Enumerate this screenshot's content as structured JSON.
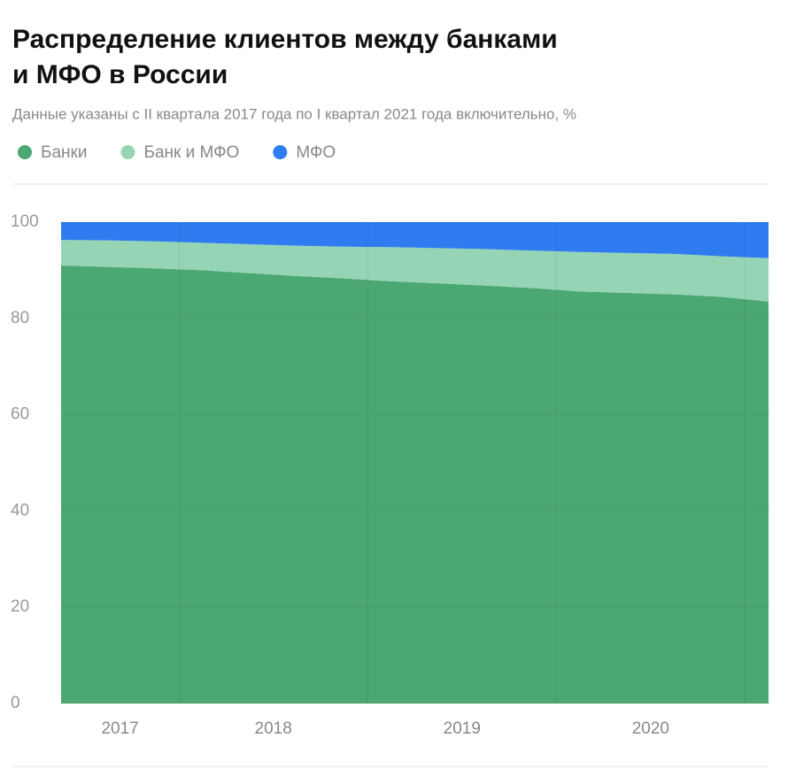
{
  "chart_data": {
    "type": "stacked_area",
    "title": "Распределение клиентов между банками и МФО в России",
    "subtitle": "Данные указаны с II квартала 2017 года по I квартал 2021 года включительно, %",
    "categories": [
      "2017",
      null,
      null,
      "2018",
      null,
      null,
      null,
      "2019",
      null,
      null,
      null,
      "2020",
      null,
      null,
      null,
      null
    ],
    "series": [
      {
        "name": "Банки",
        "color": "#4ba872",
        "values": [
          91.0,
          90.7,
          90.4,
          90.0,
          89.4,
          88.8,
          88.3,
          87.7,
          87.3,
          86.8,
          86.3,
          85.6,
          85.3,
          85.0,
          84.5,
          83.5
        ]
      },
      {
        "name": "Банк и МФО",
        "color": "#96d4b6",
        "values": [
          5.3,
          5.5,
          5.6,
          5.7,
          6.0,
          6.3,
          6.6,
          7.1,
          7.3,
          7.6,
          7.8,
          8.2,
          8.3,
          8.4,
          8.4,
          9.0
        ]
      },
      {
        "name": "МФО",
        "color": "#2f7cf0",
        "values": [
          3.7,
          3.8,
          4.0,
          4.3,
          4.6,
          4.9,
          5.1,
          5.2,
          5.4,
          5.6,
          5.9,
          6.2,
          6.4,
          6.6,
          7.1,
          7.5
        ]
      }
    ],
    "ylim": [
      0,
      100
    ],
    "yticks": [
      0,
      20,
      40,
      60,
      80,
      100
    ],
    "grid": true,
    "legend": "top-left"
  }
}
